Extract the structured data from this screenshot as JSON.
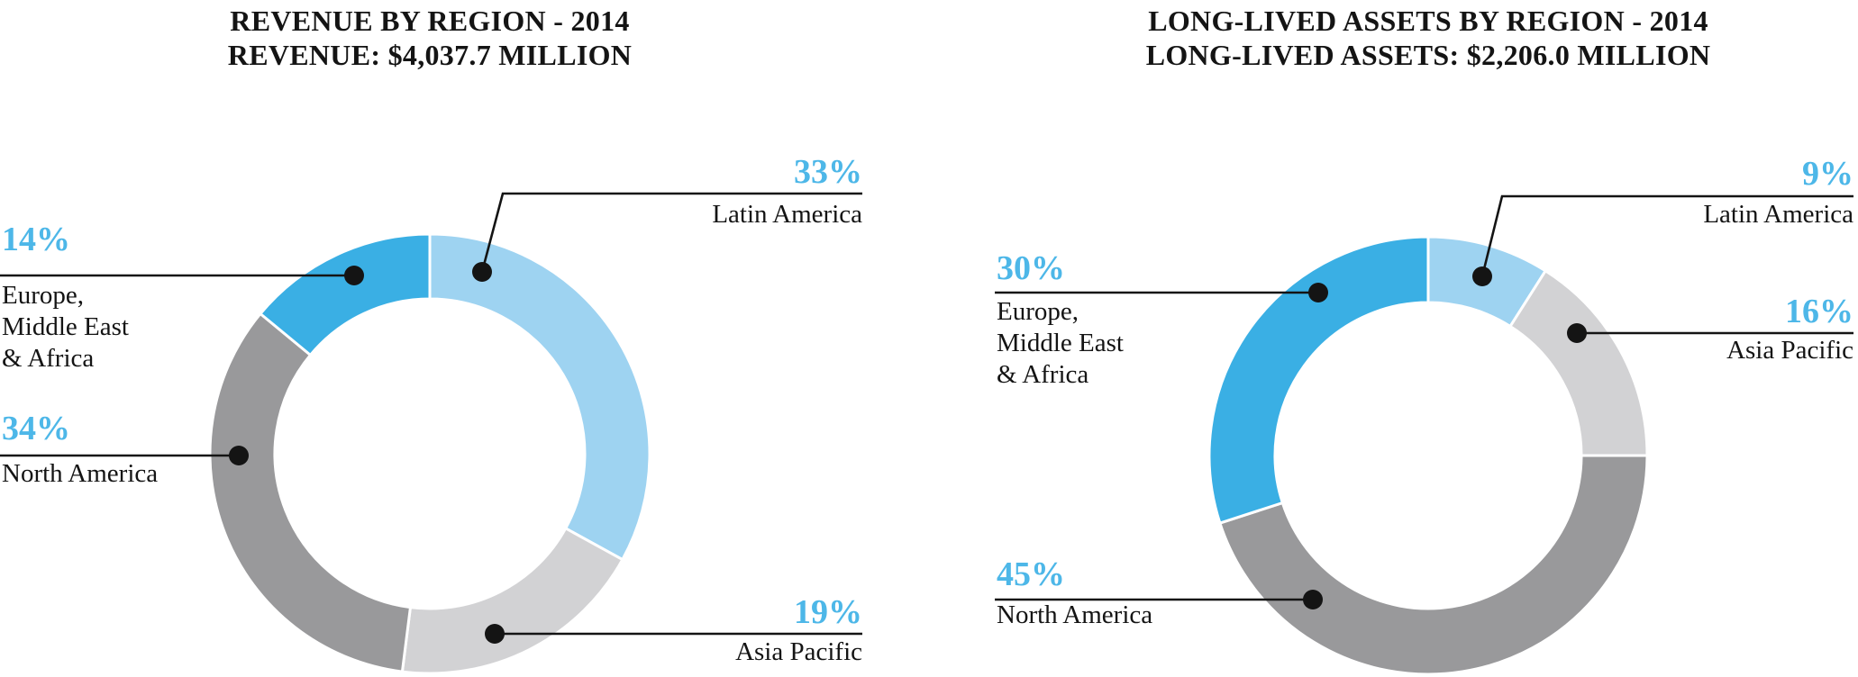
{
  "colors": {
    "background": "#FFFFFF",
    "region_latin_america": "#9ED3F1",
    "region_asia_pacific": "#D2D2D4",
    "region_north_america": "#99999B",
    "region_emea": "#3AAFE4",
    "percent_text": "#4DB7E8",
    "label_text": "#141414",
    "leader": "#141414",
    "segment_gap": "#FFFFFF"
  },
  "chart_data": [
    {
      "type": "pie",
      "variant": "donut",
      "title_line1": "REVENUE BY REGION - 2014",
      "title_line2": "REVENUE: $4,037.7 MILLION",
      "title": "REVENUE BY REGION - 2014",
      "total_million_usd": 4037.7,
      "year": 2014,
      "start_angle_deg": 0,
      "clockwise": true,
      "segments": [
        {
          "label": "Latin America",
          "pct": 33,
          "pct_text": "33%",
          "color_key": "region_latin_america",
          "name_lines": [
            "Latin America"
          ]
        },
        {
          "label": "Asia Pacific",
          "pct": 19,
          "pct_text": "19%",
          "color_key": "region_asia_pacific",
          "name_lines": [
            "Asia Pacific"
          ]
        },
        {
          "label": "North America",
          "pct": 34,
          "pct_text": "34%",
          "color_key": "region_north_america",
          "name_lines": [
            "North America"
          ]
        },
        {
          "label": "Europe, Middle East & Africa",
          "pct": 14,
          "pct_text": "14%",
          "color_key": "region_emea",
          "name_lines": [
            "Europe,",
            "Middle East",
            "& Africa"
          ]
        }
      ]
    },
    {
      "type": "pie",
      "variant": "donut",
      "title_line1": "LONG-LIVED ASSETS BY REGION - 2014",
      "title_line2": "LONG-LIVED ASSETS: $2,206.0 MILLION",
      "title": "LONG-LIVED ASSETS BY REGION - 2014",
      "total_million_usd": 2206.0,
      "year": 2014,
      "start_angle_deg": 0,
      "clockwise": true,
      "segments": [
        {
          "label": "Latin America",
          "pct": 9,
          "pct_text": "9%",
          "color_key": "region_latin_america",
          "name_lines": [
            "Latin America"
          ]
        },
        {
          "label": "Asia Pacific",
          "pct": 16,
          "pct_text": "16%",
          "color_key": "region_asia_pacific",
          "name_lines": [
            "Asia Pacific"
          ]
        },
        {
          "label": "North America",
          "pct": 45,
          "pct_text": "45%",
          "color_key": "region_north_america",
          "name_lines": [
            "North America"
          ]
        },
        {
          "label": "Europe, Middle East & Africa",
          "pct": 30,
          "pct_text": "30%",
          "color_key": "region_emea",
          "name_lines": [
            "Europe,",
            "Middle East",
            "& Africa"
          ]
        }
      ]
    }
  ]
}
